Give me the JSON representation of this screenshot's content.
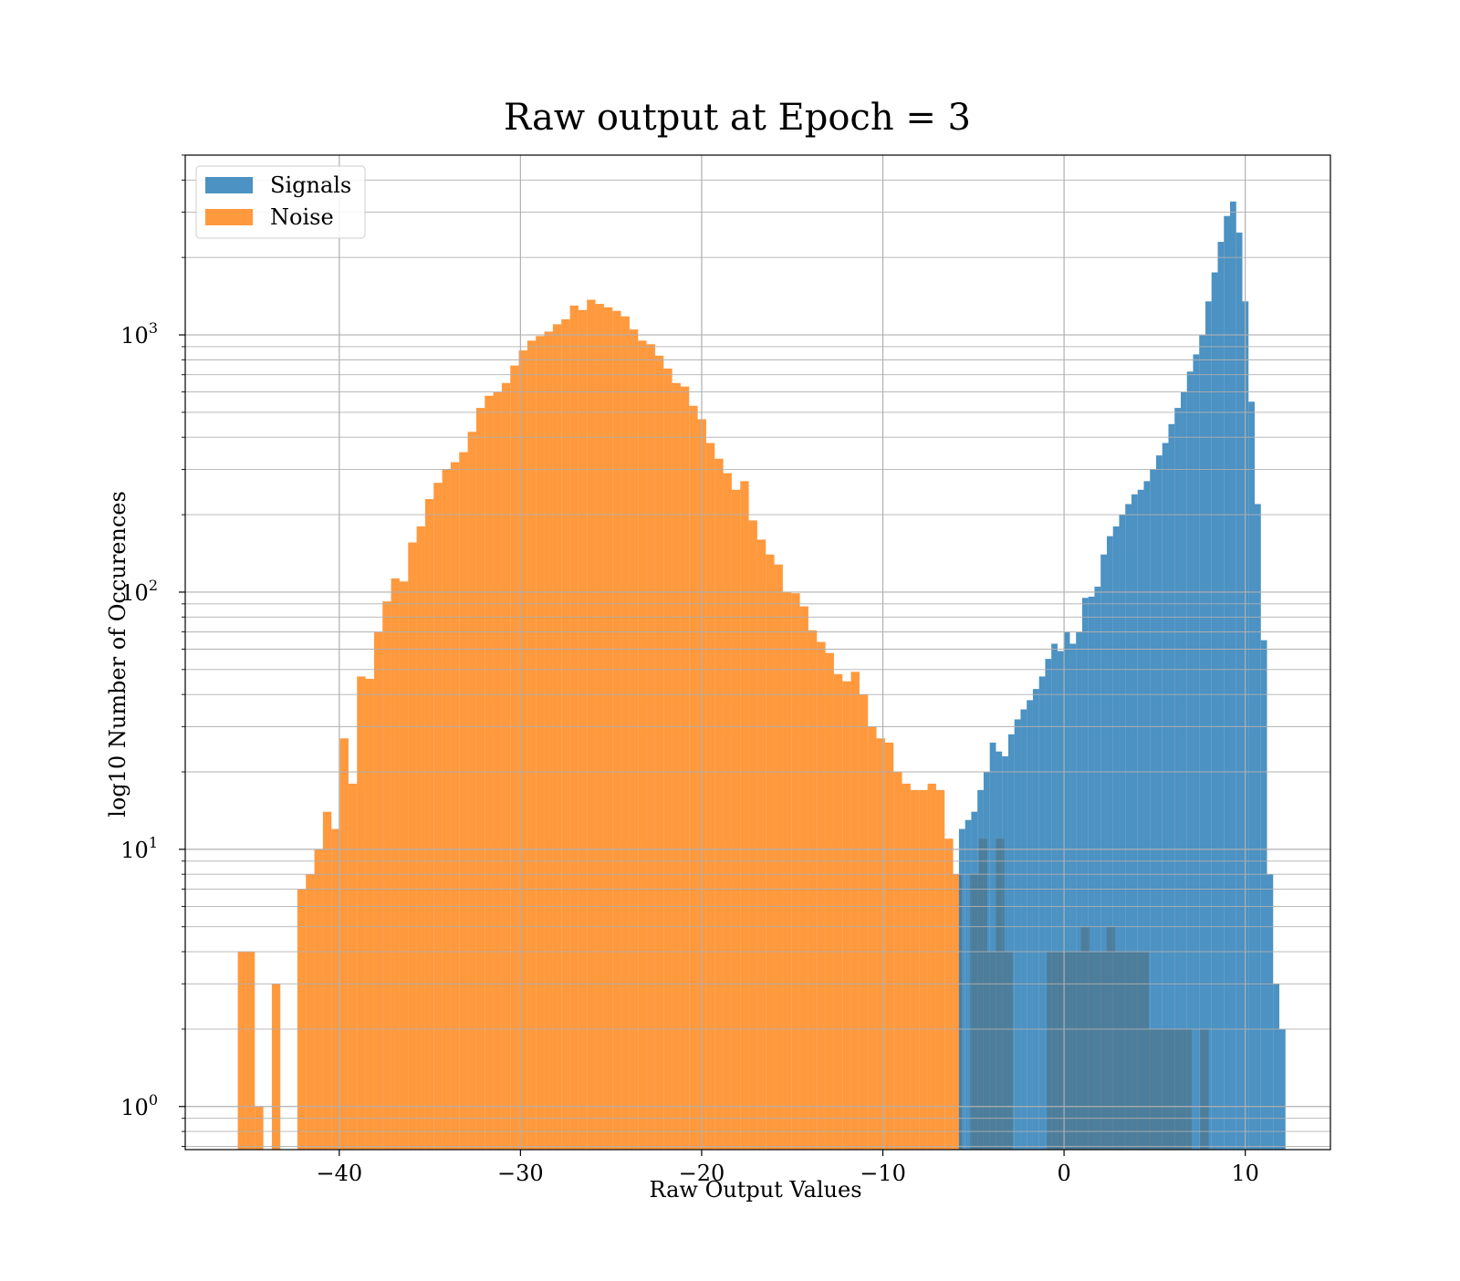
{
  "chart_data": {
    "type": "bar",
    "title": "Raw output at Epoch = 3",
    "xlabel": "Raw Output Values",
    "ylabel": "log10 Number of Occurences",
    "xlim": [
      -48.5,
      14.7
    ],
    "ylim": [
      0.68,
      5000
    ],
    "yscale": "log",
    "grid": true,
    "legend_position": "upper-left",
    "x_ticks": [
      -40,
      -30,
      -20,
      -10,
      0,
      10
    ],
    "x_tick_labels": [
      "−40",
      "−30",
      "−20",
      "−10",
      "0",
      "10"
    ],
    "y_ticks": [
      1,
      10,
      100,
      1000
    ],
    "y_tick_labels": [
      {
        "base": "10",
        "exp": "0"
      },
      {
        "base": "10",
        "exp": "1"
      },
      {
        "base": "10",
        "exp": "2"
      },
      {
        "base": "10",
        "exp": "3"
      }
    ],
    "series": [
      {
        "name": "Noise",
        "color": "#ff7f0e",
        "opacity": 0.8,
        "bin_start": -45.6,
        "bin_width": 0.47,
        "values": [
          4,
          4,
          1,
          0,
          3,
          0,
          0,
          7,
          8,
          10,
          14,
          12,
          27,
          18,
          47,
          46,
          70,
          92,
          113,
          110,
          156,
          180,
          230,
          266,
          300,
          320,
          350,
          420,
          520,
          580,
          600,
          650,
          760,
          870,
          950,
          990,
          1030,
          1100,
          1150,
          1300,
          1250,
          1370,
          1320,
          1280,
          1240,
          1180,
          1050,
          950,
          920,
          830,
          740,
          650,
          630,
          530,
          470,
          380,
          330,
          290,
          250,
          270,
          190,
          160,
          140,
          128,
          100,
          99,
          88,
          71,
          64,
          58,
          48,
          45,
          49,
          40,
          30,
          27,
          26,
          20,
          18,
          17,
          17,
          18,
          17,
          11,
          8,
          0,
          8,
          11,
          4,
          11,
          4,
          0,
          0,
          0,
          0,
          4,
          4,
          4,
          4,
          5,
          4,
          4,
          5,
          4,
          4,
          4,
          4,
          2,
          2,
          2,
          2,
          2,
          0,
          2
        ]
      },
      {
        "name": "Signals",
        "color": "#1f77b4",
        "opacity": 0.8,
        "bin_start": -5.8,
        "bin_width": 0.34,
        "values": [
          12,
          13,
          14,
          17,
          20,
          26,
          24,
          23,
          28,
          32,
          35,
          38,
          42,
          47,
          55,
          63,
          59,
          70,
          63,
          70,
          95,
          96,
          105,
          140,
          165,
          180,
          200,
          220,
          240,
          250,
          270,
          300,
          340,
          380,
          450,
          520,
          600,
          720,
          840,
          1000,
          1350,
          1750,
          2300,
          2900,
          3300,
          2500,
          1350,
          550,
          220,
          65,
          8,
          3,
          2
        ]
      }
    ]
  }
}
